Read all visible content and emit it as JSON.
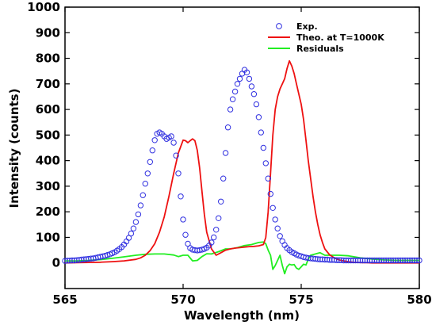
{
  "chart_data": {
    "type": "line",
    "xlabel": "Wavelength (nm)",
    "ylabel": "Intensity (counts)",
    "xlim": [
      565,
      580
    ],
    "ylim": [
      -100,
      1000
    ],
    "x_ticks": [
      565,
      570,
      575,
      580
    ],
    "y_ticks": [
      0,
      100,
      200,
      300,
      400,
      500,
      600,
      700,
      800,
      900,
      1000
    ],
    "x_tick_labels": [
      "565",
      "570",
      "575",
      "580"
    ],
    "y_tick_labels": [
      "0",
      "100",
      "200",
      "300",
      "400",
      "500",
      "600",
      "700",
      "800",
      "900",
      "1000"
    ],
    "grid": false,
    "legend_position": "top-right",
    "series": [
      {
        "name": "Exp.",
        "style": "scatter",
        "marker": "circle-open",
        "color": "#3030e0",
        "x": [
          565.0,
          565.1,
          565.2,
          565.3,
          565.4,
          565.5,
          565.6,
          565.7,
          565.8,
          565.9,
          566.0,
          566.1,
          566.2,
          566.3,
          566.4,
          566.5,
          566.6,
          566.7,
          566.8,
          566.9,
          567.0,
          567.1,
          567.2,
          567.3,
          567.4,
          567.5,
          567.6,
          567.7,
          567.8,
          567.9,
          568.0,
          568.1,
          568.2,
          568.3,
          568.4,
          568.5,
          568.6,
          568.7,
          568.8,
          568.9,
          569.0,
          569.1,
          569.2,
          569.3,
          569.4,
          569.5,
          569.6,
          569.7,
          569.8,
          569.9,
          570.0,
          570.1,
          570.2,
          570.3,
          570.4,
          570.5,
          570.6,
          570.7,
          570.8,
          570.9,
          571.0,
          571.1,
          571.2,
          571.3,
          571.4,
          571.5,
          571.6,
          571.7,
          571.8,
          571.9,
          572.0,
          572.1,
          572.2,
          572.3,
          572.4,
          572.5,
          572.6,
          572.7,
          572.8,
          572.9,
          573.0,
          573.1,
          573.2,
          573.3,
          573.4,
          573.5,
          573.6,
          573.7,
          573.8,
          573.9,
          574.0,
          574.1,
          574.2,
          574.3,
          574.4,
          574.5,
          574.6,
          574.7,
          574.8,
          574.9,
          575.0,
          575.1,
          575.2,
          575.3,
          575.4,
          575.5,
          575.6,
          575.7,
          575.8,
          575.9,
          576.0,
          576.1,
          576.2,
          576.3,
          576.4,
          576.5,
          576.6,
          576.7,
          576.8,
          576.9,
          577.0,
          577.1,
          577.2,
          577.3,
          577.4,
          577.5,
          577.6,
          577.7,
          577.8,
          577.9,
          578.0,
          578.1,
          578.2,
          578.3,
          578.4,
          578.5,
          578.6,
          578.7,
          578.8,
          578.9,
          579.0,
          579.1,
          579.2,
          579.3,
          579.4,
          579.5,
          579.6,
          579.7,
          579.8,
          579.9,
          580.0
        ],
        "y": [
          8,
          9,
          9,
          10,
          10,
          11,
          12,
          13,
          14,
          15,
          16,
          17,
          18,
          20,
          22,
          24,
          26,
          28,
          31,
          34,
          38,
          42,
          48,
          54,
          62,
          72,
          84,
          98,
          115,
          135,
          160,
          190,
          225,
          265,
          310,
          350,
          395,
          440,
          480,
          505,
          510,
          505,
          495,
          485,
          490,
          495,
          470,
          420,
          350,
          260,
          170,
          110,
          75,
          58,
          52,
          50,
          49,
          50,
          52,
          55,
          60,
          68,
          80,
          100,
          130,
          175,
          240,
          330,
          430,
          530,
          600,
          640,
          670,
          700,
          720,
          740,
          755,
          745,
          720,
          690,
          660,
          620,
          570,
          510,
          450,
          390,
          330,
          270,
          215,
          170,
          135,
          105,
          85,
          70,
          58,
          50,
          43,
          38,
          33,
          29,
          26,
          23,
          21,
          19,
          18,
          17,
          16,
          15,
          14,
          14,
          13,
          13,
          12,
          12,
          12,
          11,
          11,
          11,
          10,
          10,
          10,
          10,
          10,
          10,
          10,
          10,
          10,
          10,
          10,
          10,
          10,
          10,
          10,
          10,
          10,
          10,
          10,
          10,
          10,
          10,
          10,
          10,
          10,
          10,
          10,
          10,
          10,
          10,
          10,
          10,
          10
        ]
      },
      {
        "name": "Theo. at T=1000K",
        "style": "line",
        "color": "#ee1111",
        "x": [
          565.0,
          565.5,
          566.0,
          566.5,
          567.0,
          567.5,
          568.0,
          568.2,
          568.4,
          568.6,
          568.8,
          569.0,
          569.2,
          569.4,
          569.6,
          569.8,
          570.0,
          570.1,
          570.2,
          570.3,
          570.4,
          570.5,
          570.6,
          570.7,
          570.8,
          570.9,
          571.0,
          571.2,
          571.4,
          571.6,
          571.8,
          572.0,
          572.2,
          572.4,
          572.6,
          572.8,
          573.0,
          573.2,
          573.4,
          573.5,
          573.6,
          573.7,
          573.8,
          573.9,
          574.0,
          574.1,
          574.2,
          574.3,
          574.4,
          574.5,
          574.6,
          574.7,
          574.8,
          574.9,
          575.0,
          575.1,
          575.2,
          575.3,
          575.4,
          575.5,
          575.6,
          575.7,
          575.8,
          575.9,
          576.0,
          576.2,
          576.4,
          576.6,
          576.8,
          577.0,
          577.2,
          577.4,
          577.6,
          577.8,
          578.0,
          578.5,
          579.0,
          579.5,
          580.0
        ],
        "y": [
          0,
          1,
          2,
          3,
          5,
          8,
          14,
          20,
          30,
          48,
          75,
          120,
          180,
          260,
          350,
          430,
          480,
          478,
          470,
          478,
          485,
          478,
          440,
          370,
          280,
          190,
          120,
          55,
          30,
          40,
          50,
          55,
          58,
          60,
          62,
          64,
          65,
          67,
          72,
          100,
          200,
          350,
          500,
          600,
          650,
          680,
          700,
          720,
          760,
          790,
          770,
          740,
          700,
          660,
          620,
          560,
          480,
          400,
          330,
          260,
          200,
          150,
          110,
          80,
          55,
          32,
          20,
          12,
          8,
          5,
          3,
          2,
          1,
          1,
          0,
          0,
          0,
          0,
          0
        ]
      },
      {
        "name": "Residuals",
        "style": "line",
        "color": "#22ee22",
        "x": [
          565.0,
          565.5,
          566.0,
          566.5,
          567.0,
          567.5,
          568.0,
          568.4,
          568.8,
          569.2,
          569.6,
          569.8,
          570.0,
          570.2,
          570.4,
          570.6,
          570.8,
          571.0,
          571.2,
          571.5,
          571.8,
          572.0,
          572.3,
          572.6,
          572.9,
          573.2,
          573.4,
          573.5,
          573.6,
          573.7,
          573.8,
          573.9,
          574.0,
          574.1,
          574.2,
          574.3,
          574.4,
          574.5,
          574.6,
          574.7,
          574.8,
          574.9,
          575.0,
          575.1,
          575.2,
          575.3,
          575.4,
          575.6,
          575.8,
          576.0,
          576.3,
          576.6,
          577.0,
          577.5,
          578.0,
          578.5,
          579.0,
          579.5,
          580.0
        ],
        "y": [
          8,
          8,
          10,
          13,
          18,
          24,
          30,
          34,
          35,
          35,
          31,
          25,
          30,
          30,
          8,
          10,
          25,
          36,
          35,
          44,
          55,
          55,
          60,
          68,
          72,
          80,
          82,
          75,
          50,
          30,
          -25,
          -10,
          10,
          30,
          -10,
          -42,
          -15,
          -5,
          -8,
          -6,
          -20,
          -25,
          -15,
          -5,
          -8,
          15,
          30,
          35,
          40,
          30,
          30,
          30,
          28,
          20,
          15,
          12,
          10,
          10,
          10
        ]
      }
    ]
  }
}
